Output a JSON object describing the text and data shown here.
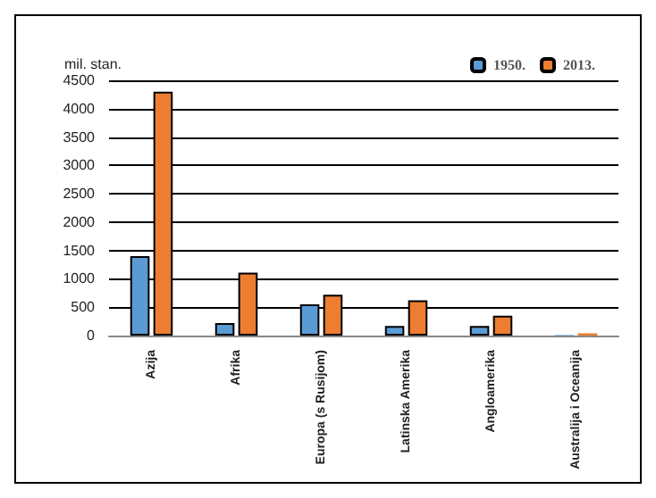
{
  "chart_data": {
    "type": "bar",
    "ylabel": "mil. stan.",
    "categories": [
      "Azija",
      "Afrika",
      "Europa (s Rusijom)",
      "Latinska Amerika",
      "Angloamerika",
      "Australija i Oceanija"
    ],
    "series": [
      {
        "name": "1950.",
        "color": "#5b9bd5",
        "values": [
          1400,
          220,
          550,
          170,
          170,
          10
        ]
      },
      {
        "name": "2013.",
        "color": "#ed7d31",
        "values": [
          4300,
          1110,
          720,
          620,
          350,
          40
        ]
      }
    ],
    "ylim": [
      0,
      4500
    ],
    "yticks": [
      0,
      500,
      1000,
      1500,
      2000,
      2500,
      3000,
      3500,
      4000,
      4500
    ],
    "grid": "y",
    "legend": "top right"
  }
}
